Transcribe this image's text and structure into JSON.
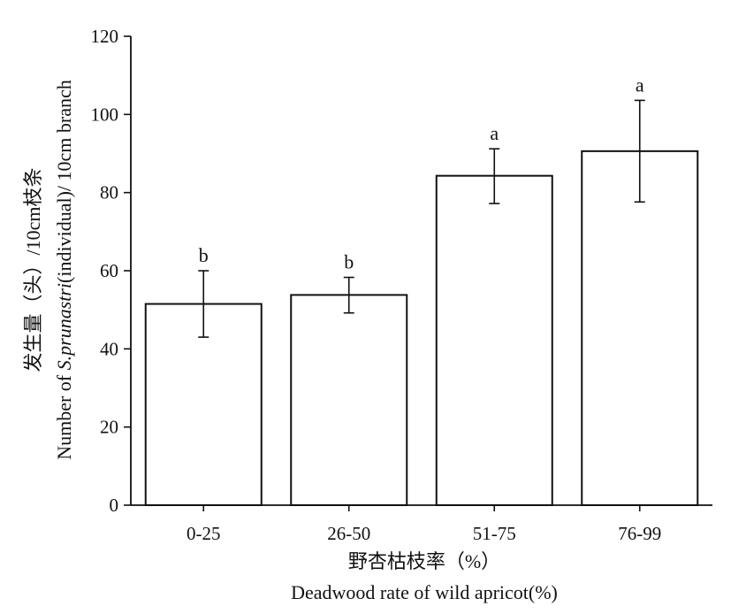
{
  "chart_data": {
    "type": "bar",
    "categories": [
      "0-25",
      "26-50",
      "51-75",
      "76-99"
    ],
    "values": [
      51.5,
      53.8,
      84.3,
      90.6
    ],
    "errors": [
      [
        43,
        60
      ],
      [
        49.2,
        58.3
      ],
      [
        77.2,
        91.2
      ],
      [
        77.6,
        103.6
      ]
    ],
    "significance_labels": [
      "b",
      "b",
      "a",
      "a"
    ],
    "ylim": [
      0,
      120
    ],
    "yticks": [
      0,
      20,
      40,
      60,
      80,
      100,
      120
    ],
    "ytick_labels": [
      "0",
      "20",
      "40",
      "60",
      "80",
      "100",
      "120"
    ],
    "xlabel_cn": "野杏枯枝率（%）",
    "xlabel_en": "Deadwood rate of wild apricot(%)",
    "ylabel_prefix": "Number of ",
    "ylabel_species": "S.prunastri",
    "ylabel_suffix": "(individual)/ 10cm branch",
    "ylabel_cn": "发生量（头）/10cm枝条",
    "grid": false,
    "legend": "none",
    "bar_color": "#ffffff",
    "line_color": "#111111"
  }
}
